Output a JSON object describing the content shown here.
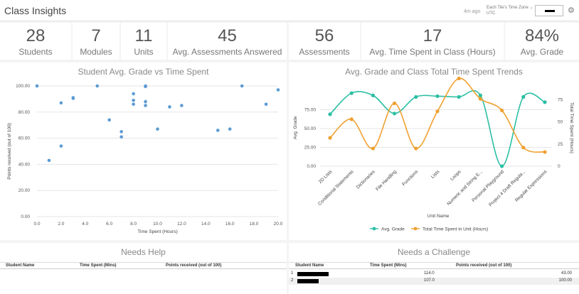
{
  "header": {
    "title": "Class Insights",
    "updated_ago": "4m ago",
    "timezone_label": "Each Tile's Time Zone",
    "timezone_value": "UTC"
  },
  "kpis": [
    {
      "value": "28",
      "label": "Students"
    },
    {
      "value": "7",
      "label": "Modules"
    },
    {
      "value": "11",
      "label": "Units"
    },
    {
      "value": "45",
      "label": "Avg. Assessments Answered"
    },
    {
      "value": "56",
      "label": "Assessments"
    },
    {
      "value": "17",
      "label": "Avg. Time Spent in Class (Hours)"
    },
    {
      "value": "84%",
      "label": "Avg. Grade"
    }
  ],
  "scatter": {
    "title": "Student Avg. Grade vs Time Spent"
  },
  "trends": {
    "title": "Avg. Grade and Class Total Time Spent Trends"
  },
  "needs_help": {
    "title": "Needs Help",
    "columns": [
      "Student Name",
      "Time Spent (Mins)",
      "Points received (out of 100)"
    ]
  },
  "needs_challenge": {
    "title": "Needs a Challenge",
    "columns": [
      "Student Name",
      "Time Spent (Mins)",
      "Points received (out of 100)"
    ],
    "rows": [
      {
        "index": "1",
        "time": "114.0",
        "points": "43.00"
      },
      {
        "index": "2",
        "time": "107.0",
        "points": "100.00"
      }
    ]
  },
  "chart_data": [
    {
      "type": "scatter",
      "title": "Student Avg. Grade vs Time Spent",
      "xlabel": "Time Spent (Hours)",
      "ylabel": "Points received (out of 100)",
      "xlim": [
        0,
        20
      ],
      "ylim": [
        0,
        100
      ],
      "x_ticks": [
        "0.0",
        "2.0",
        "4.0",
        "6.0",
        "8.0",
        "10.0",
        "12.0",
        "14.0",
        "16.0",
        "18.0",
        "20.0"
      ],
      "y_ticks": [
        "0.00",
        "20.00",
        "40.00",
        "60.00",
        "80.00",
        "100.00"
      ],
      "grid": true,
      "points": [
        {
          "x": 0,
          "y": 100
        },
        {
          "x": 1,
          "y": 43
        },
        {
          "x": 2,
          "y": 87
        },
        {
          "x": 2,
          "y": 54
        },
        {
          "x": 3,
          "y": 91
        },
        {
          "x": 3,
          "y": 90.5
        },
        {
          "x": 5,
          "y": 100
        },
        {
          "x": 6,
          "y": 74
        },
        {
          "x": 7,
          "y": 65
        },
        {
          "x": 7,
          "y": 61
        },
        {
          "x": 8,
          "y": 94
        },
        {
          "x": 8,
          "y": 89
        },
        {
          "x": 8,
          "y": 86
        },
        {
          "x": 9,
          "y": 100
        },
        {
          "x": 9,
          "y": 99.5
        },
        {
          "x": 9,
          "y": 88
        },
        {
          "x": 9,
          "y": 85
        },
        {
          "x": 10,
          "y": 67
        },
        {
          "x": 11,
          "y": 84
        },
        {
          "x": 12,
          "y": 85
        },
        {
          "x": 15,
          "y": 66
        },
        {
          "x": 16,
          "y": 67
        },
        {
          "x": 17,
          "y": 100
        },
        {
          "x": 19,
          "y": 86
        },
        {
          "x": 20,
          "y": 97
        }
      ]
    },
    {
      "type": "line",
      "title": "Avg. Grade and Class Total Time Spent Trends",
      "xlabel": "Unit Name",
      "ylabel": "Avg. Grade",
      "y2label": "Total Time Spent (Hours)",
      "ylim": [
        0,
        100
      ],
      "y2lim": [
        0,
        85
      ],
      "y_ticks": [
        "0.00",
        "25.00",
        "50.00",
        "75.00"
      ],
      "y2_ticks": [
        "0",
        "25",
        "50",
        "75"
      ],
      "legend": "bottom",
      "categories": [
        "2D Lists",
        "Conditional Statements",
        "Dictionaries",
        "File Handling",
        "Functions",
        "Lists",
        "Loops",
        "Numeric and String E...",
        "Personal Playground",
        "Project 4 Draft Regula...",
        "Regular Expressions"
      ],
      "series": [
        {
          "name": "Avg. Grade",
          "axis": "left",
          "color": "#2bbfa4",
          "values": [
            69,
            97,
            94,
            70,
            92,
            93,
            92,
            94,
            0,
            92,
            85
          ]
        },
        {
          "name": "Total Time Spent in Unit (Hours)",
          "axis": "right",
          "color": "#f0a030",
          "values": [
            32,
            53,
            20,
            71,
            20,
            62,
            99,
            76,
            63,
            21,
            16
          ]
        }
      ]
    }
  ]
}
